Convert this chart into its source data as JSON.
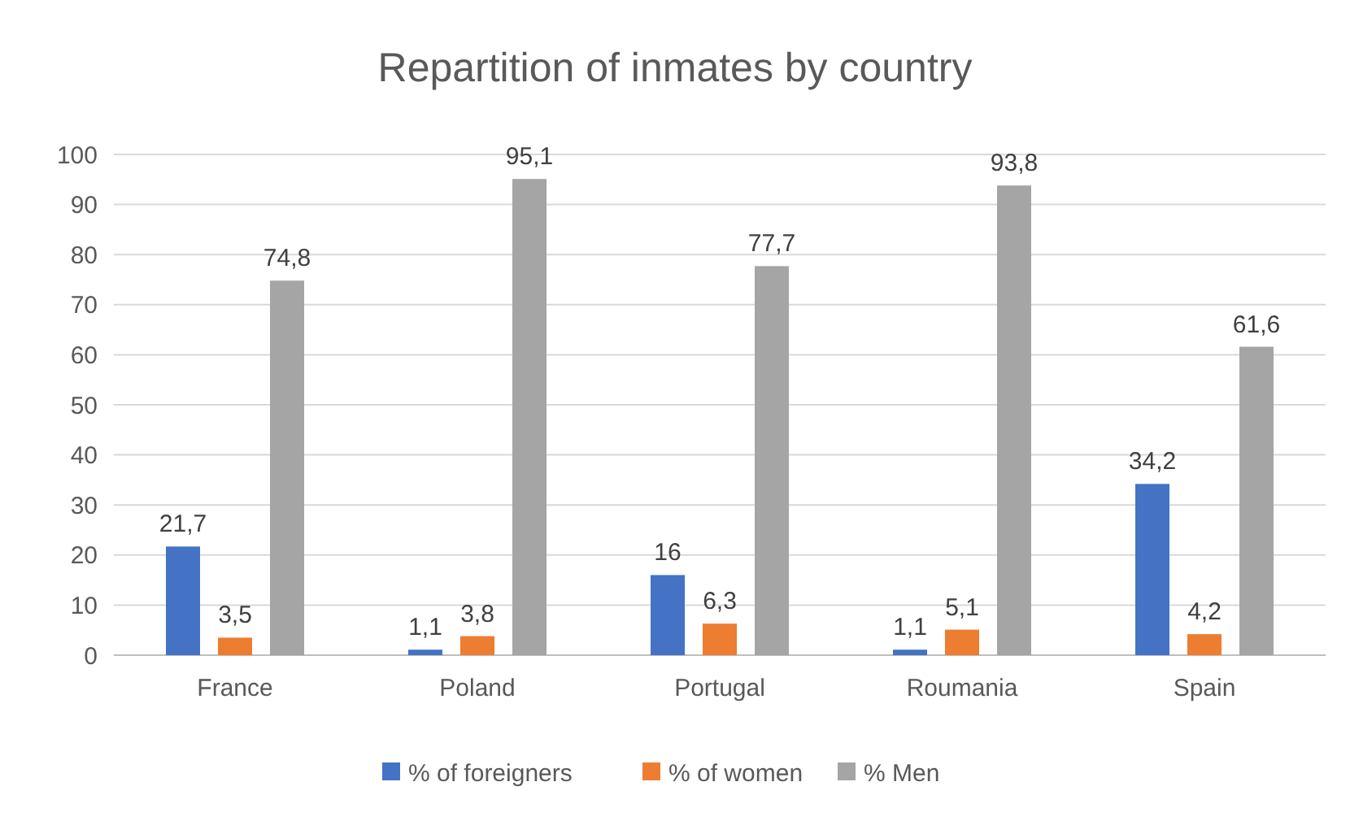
{
  "chart_data": {
    "type": "bar",
    "title": "Repartition of inmates by country",
    "categories": [
      "France",
      "Poland",
      "Portugal",
      "Roumania",
      "Spain"
    ],
    "series": [
      {
        "name": "% of foreigners",
        "color": "#4472c4",
        "values": [
          21.7,
          1.1,
          16,
          1.1,
          34.2
        ],
        "value_labels": [
          "21,7",
          "1,1",
          "16",
          "1,1",
          "34,2"
        ]
      },
      {
        "name": "% of women",
        "color": "#ed7d31",
        "values": [
          3.5,
          3.8,
          6.3,
          5.1,
          4.2
        ],
        "value_labels": [
          "3,5",
          "3,8",
          "6,3",
          "5,1",
          "4,2"
        ]
      },
      {
        "name": "% Men",
        "color": "#a5a5a5",
        "values": [
          74.8,
          95.1,
          77.7,
          93.8,
          61.6
        ],
        "value_labels": [
          "74,8",
          "95,1",
          "77,7",
          "93,8",
          "61,6"
        ]
      }
    ],
    "ylim": [
      0,
      100
    ],
    "yticks": [
      0,
      10,
      20,
      30,
      40,
      50,
      60,
      70,
      80,
      90,
      100
    ],
    "grid": "y",
    "legend": "bottom"
  }
}
